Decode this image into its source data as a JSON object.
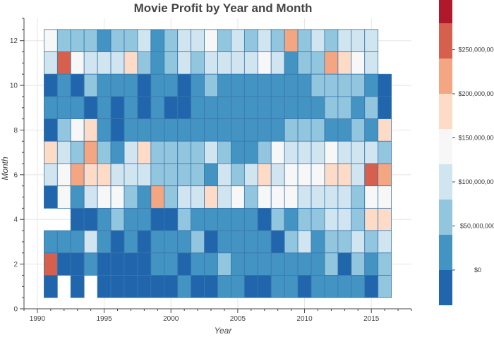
{
  "chart_data": {
    "type": "heatmap",
    "title": "Movie Profit by Year and Month",
    "xlabel": "Year",
    "ylabel": "Month",
    "xlim": [
      1989,
      2018
    ],
    "ylim": [
      0,
      13
    ],
    "x_ticks": [
      "1990",
      "1995",
      "2000",
      "2005",
      "2010",
      "2015"
    ],
    "y_ticks": [
      "0",
      "2",
      "4",
      "6",
      "8",
      "10",
      "12"
    ],
    "years": [
      1991,
      1992,
      1993,
      1994,
      1995,
      1996,
      1997,
      1998,
      1999,
      2000,
      2001,
      2002,
      2003,
      2004,
      2005,
      2006,
      2007,
      2008,
      2009,
      2010,
      2011,
      2012,
      2013,
      2014,
      2015,
      2016
    ],
    "color_scale": {
      "bin_size": 40000000,
      "min": -40000000,
      "max": 280000000,
      "palette": [
        "#2166ac",
        "#4393c3",
        "#92c5de",
        "#d1e5f0",
        "#f7f7f7",
        "#fddbc7",
        "#f4a582",
        "#d6604d",
        "#b2182b"
      ],
      "tick_labels": [
        "$0",
        "$50,000,000",
        "$100,000,000",
        "$150,000,000",
        "$200,000,000",
        "$250,000,000"
      ],
      "tick_values": [
        0,
        50000000,
        100000000,
        150000000,
        200000000,
        250000000
      ]
    },
    "grid": true,
    "legend": "colorbar-right",
    "rows": [
      {
        "month": 12,
        "years": [
          1991,
          1992,
          1993,
          1994,
          1995,
          1996,
          1997,
          1998,
          1999,
          2000,
          2001,
          2002,
          2003,
          2004,
          2005,
          2006,
          2007,
          2008,
          2009,
          2010,
          2011,
          2012,
          2013,
          2014,
          2015
        ],
        "profit_millions": [
          145,
          70,
          70,
          40,
          20,
          55,
          70,
          80,
          10,
          55,
          80,
          80,
          150,
          70,
          80,
          75,
          90,
          70,
          230,
          70,
          80,
          70,
          80,
          80,
          80
        ]
      },
      {
        "month": 11,
        "years": [
          1991,
          1992,
          1993,
          1994,
          1995,
          1996,
          1997,
          1998,
          1999,
          2000,
          2001,
          2002,
          2003,
          2004,
          2005,
          2006,
          2007,
          2008,
          2009,
          2010,
          2011,
          2012,
          2013,
          2014,
          2015
        ],
        "profit_millions": [
          80,
          270,
          150,
          80,
          80,
          80,
          160,
          70,
          30,
          75,
          80,
          75,
          80,
          80,
          80,
          80,
          120,
          80,
          30,
          70,
          70,
          230,
          160,
          130,
          80
        ]
      },
      {
        "month": 10,
        "years": [
          1991,
          1992,
          1993,
          1994,
          1995,
          1996,
          1997,
          1998,
          1999,
          2000,
          2001,
          2002,
          2003,
          2004,
          2005,
          2006,
          2007,
          2008,
          2009,
          2010,
          2011,
          2012,
          2013,
          2014,
          2015,
          2016
        ],
        "profit_millions": [
          -20,
          10,
          -20,
          50,
          20,
          20,
          20,
          -20,
          30,
          30,
          -20,
          20,
          60,
          20,
          20,
          20,
          20,
          20,
          20,
          20,
          50,
          50,
          50,
          50,
          20,
          -20
        ]
      },
      {
        "month": 9,
        "years": [
          1991,
          1992,
          1993,
          1994,
          1995,
          1996,
          1997,
          1998,
          1999,
          2000,
          2001,
          2002,
          2003,
          2004,
          2005,
          2006,
          2007,
          2008,
          2009,
          2010,
          2011,
          2012,
          2013,
          2014,
          2015,
          2016
        ],
        "profit_millions": [
          20,
          10,
          20,
          -20,
          20,
          -20,
          20,
          -20,
          20,
          -20,
          -20,
          20,
          20,
          20,
          20,
          20,
          20,
          20,
          20,
          20,
          20,
          50,
          50,
          20,
          60,
          -20
        ]
      },
      {
        "month": 8,
        "years": [
          1991,
          1992,
          1993,
          1994,
          1995,
          1996,
          1997,
          1998,
          1999,
          2000,
          2001,
          2002,
          2003,
          2004,
          2005,
          2006,
          2007,
          2008,
          2009,
          2010,
          2011,
          2012,
          2013,
          2014,
          2015,
          2016
        ],
        "profit_millions": [
          -20,
          70,
          135,
          160,
          20,
          -20,
          20,
          20,
          20,
          20,
          20,
          20,
          20,
          20,
          20,
          20,
          20,
          20,
          60,
          60,
          60,
          20,
          20,
          60,
          20,
          160
        ]
      },
      {
        "month": 7,
        "years": [
          1991,
          1992,
          1993,
          1994,
          1995,
          1996,
          1997,
          1998,
          1999,
          2000,
          2001,
          2002,
          2003,
          2004,
          2005,
          2006,
          2007,
          2008,
          2009,
          2010,
          2011,
          2012,
          2013,
          2014,
          2015,
          2016
        ],
        "profit_millions": [
          160,
          90,
          50,
          230,
          50,
          20,
          90,
          160,
          50,
          50,
          50,
          50,
          90,
          50,
          20,
          20,
          50,
          130,
          90,
          90,
          90,
          130,
          90,
          90,
          90,
          50
        ]
      },
      {
        "month": 6,
        "years": [
          1991,
          1992,
          1993,
          1994,
          1995,
          1996,
          1997,
          1998,
          1999,
          2000,
          2001,
          2002,
          2003,
          2004,
          2005,
          2006,
          2007,
          2008,
          2009,
          2010,
          2011,
          2012,
          2013,
          2014,
          2015,
          2016
        ],
        "profit_millions": [
          90,
          130,
          230,
          160,
          160,
          90,
          90,
          90,
          50,
          50,
          50,
          50,
          20,
          90,
          50,
          90,
          160,
          90,
          130,
          130,
          130,
          160,
          160,
          90,
          270,
          210
        ]
      },
      {
        "month": 5,
        "years": [
          1991,
          1992,
          1993,
          1994,
          1995,
          1996,
          1997,
          1998,
          1999,
          2000,
          2001,
          2002,
          2003,
          2004,
          2005,
          2006,
          2007,
          2008,
          2009,
          2010,
          2011,
          2012,
          2013,
          2014,
          2015,
          2016
        ],
        "profit_millions": [
          -20,
          130,
          20,
          90,
          130,
          130,
          50,
          20,
          230,
          50,
          90,
          90,
          160,
          90,
          130,
          50,
          130,
          130,
          130,
          90,
          90,
          90,
          90,
          50,
          130,
          130
        ]
      },
      {
        "month": 4,
        "years": [
          1993,
          1994,
          1995,
          1996,
          1997,
          1998,
          1999,
          2000,
          2001,
          2002,
          2003,
          2004,
          2005,
          2006,
          2007,
          2008,
          2009,
          2010,
          2011,
          2012,
          2013,
          2014,
          2015,
          2016
        ],
        "profit_millions": [
          -20,
          -20,
          20,
          50,
          20,
          20,
          -20,
          -20,
          60,
          20,
          20,
          20,
          20,
          20,
          -20,
          50,
          20,
          60,
          60,
          90,
          90,
          50,
          160,
          160
        ]
      },
      {
        "month": 3,
        "years": [
          1991,
          1992,
          1993,
          1994,
          1995,
          1996,
          1997,
          1998,
          1999,
          2000,
          2001,
          2002,
          2003,
          2004,
          2005,
          2006,
          2007,
          2008,
          2009,
          2010,
          2011,
          2012,
          2013,
          2014,
          2015,
          2016
        ],
        "profit_millions": [
          20,
          20,
          20,
          90,
          20,
          -20,
          20,
          -20,
          20,
          20,
          20,
          50,
          -20,
          20,
          20,
          20,
          20,
          -20,
          50,
          90,
          20,
          50,
          50,
          90,
          50,
          90
        ]
      },
      {
        "month": 2,
        "years": [
          1991,
          1992,
          1993,
          1994,
          1995,
          1996,
          1997,
          1998,
          1999,
          2000,
          2001,
          2002,
          2003,
          2004,
          2005,
          2006,
          2007,
          2008,
          2009,
          2010,
          2011,
          2012,
          2013,
          2014,
          2015,
          2016
        ],
        "profit_millions": [
          270,
          -20,
          -20,
          20,
          -20,
          -20,
          -20,
          -20,
          20,
          20,
          -20,
          20,
          20,
          50,
          20,
          20,
          20,
          20,
          20,
          20,
          20,
          50,
          -20,
          50,
          20,
          50
        ]
      },
      {
        "month": 1,
        "years": [
          1991,
          1993,
          1995,
          1996,
          1997,
          1998,
          1999,
          2000,
          2001,
          2002,
          2003,
          2004,
          2005,
          2006,
          2007,
          2008,
          2009,
          2010,
          2011,
          2012,
          2013,
          2014,
          2015,
          2016
        ],
        "profit_millions": [
          -20,
          -20,
          -20,
          -20,
          -20,
          -20,
          -20,
          -20,
          20,
          -20,
          -20,
          20,
          20,
          -20,
          -20,
          20,
          20,
          -20,
          20,
          20,
          20,
          20,
          -20,
          50
        ]
      }
    ]
  }
}
